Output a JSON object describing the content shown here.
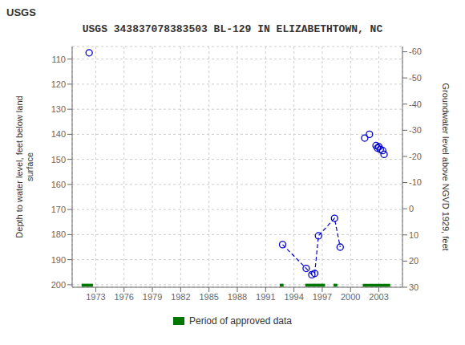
{
  "chart_data": {
    "type": "scatter",
    "title": "USGS 343837078383503 BL-129 IN ELIZABETHTOWN, NC",
    "ylabel": "Depth to water level, feet below land\nsurface",
    "y2label": "Groundwater level above NGVD 1929, feet",
    "annotations": [
      {
        "text": "USGS"
      }
    ],
    "xlim": [
      1970.5,
      2005.5
    ],
    "xticks": [
      1973,
      1976,
      1979,
      1982,
      1985,
      1988,
      1991,
      1994,
      1997,
      2000,
      2003
    ],
    "ylim": [
      201,
      105
    ],
    "yticks": [
      110,
      120,
      130,
      140,
      150,
      160,
      170,
      180,
      190,
      200
    ],
    "y2lim": [
      30,
      -62
    ],
    "y2ticks": [
      30,
      20,
      10,
      0,
      -10,
      -20,
      -30,
      -40,
      -50,
      -60
    ],
    "grid": true,
    "legend": "bottom",
    "series": [
      {
        "type": "scatter",
        "marker": "open_circle",
        "color": "#0000cc",
        "x": [
          1972.3,
          1992.8,
          1995.3,
          1995.9,
          1996.2,
          1996.6,
          1998.3,
          1998.9,
          2001.5,
          2002.0,
          2002.7,
          2002.85,
          2003.0,
          2003.15,
          2003.4,
          2003.55
        ],
        "values": [
          107.5,
          184.0,
          193.5,
          196.0,
          195.5,
          180.5,
          173.5,
          185.0,
          141.5,
          140.0,
          144.5,
          145.5,
          145.0,
          146.0,
          146.5,
          148.0
        ]
      },
      {
        "type": "line",
        "line_style": "dashed",
        "color": "#0000cc",
        "x": [
          1992.8,
          1995.3,
          1995.9,
          1996.2,
          1996.6,
          1998.3,
          1998.9
        ],
        "values": [
          184.0,
          193.5,
          196.0,
          195.5,
          180.5,
          173.5,
          185.0
        ]
      },
      {
        "name": "Period of approved data",
        "type": "range_bar",
        "color": "#007700",
        "x_ranges": [
          [
            1971.5,
            1972.7
          ],
          [
            1992.5,
            1992.9
          ],
          [
            1995.2,
            1997.3
          ],
          [
            1998.2,
            1998.6
          ],
          [
            2001.3,
            2004.2
          ]
        ],
        "y": 200.2,
        "thickness": 1.2
      }
    ]
  }
}
